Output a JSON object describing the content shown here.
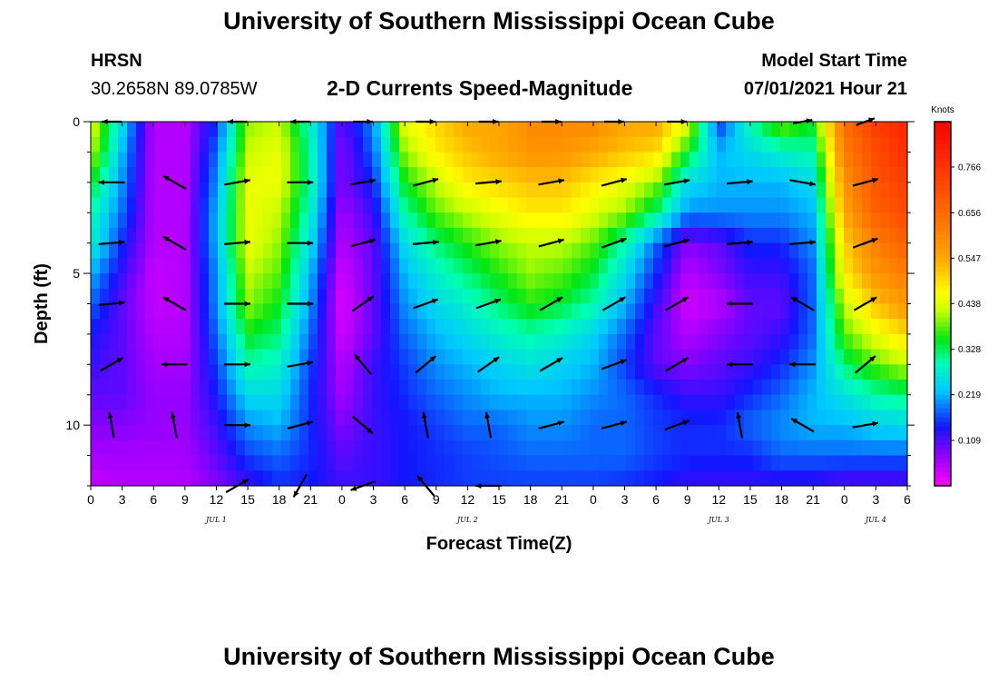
{
  "header": {
    "title": "University of Southern Mississippi Ocean Cube",
    "station": "HRSN",
    "coords": "30.2658N  89.0785W",
    "subtitle": "2-D Currents Speed-Magnitude",
    "model_label": "Model Start Time",
    "model_time": "07/01/2021 Hour 21"
  },
  "footer": {
    "title": "University of Southern Mississippi Ocean Cube"
  },
  "chart_data": {
    "type": "heatmap",
    "title": "2-D Currents Speed-Magnitude",
    "xlabel": "Forecast Time(Z)",
    "ylabel": "Depth (ft)",
    "colorbar_label": "Knots",
    "colorbar_ticks": [
      "0.766",
      "0.656",
      "0.547",
      "0.438",
      "0.328",
      "0.219",
      "0.109"
    ],
    "colorbar_range": [
      0.0,
      0.875
    ],
    "x_tick_labels": [
      "0",
      "3",
      "6",
      "9",
      "12",
      "15",
      "18",
      "21",
      "0",
      "3",
      "6",
      "9",
      "12",
      "15",
      "18",
      "21",
      "0",
      "3",
      "6",
      "9",
      "12",
      "15",
      "18",
      "21",
      "0",
      "3",
      "6"
    ],
    "x_range_hours": [
      0,
      78
    ],
    "day_labels": [
      {
        "label": "JUL 1",
        "hour": 12
      },
      {
        "label": "JUL 2",
        "hour": 36
      },
      {
        "label": "JUL 3",
        "hour": 60
      },
      {
        "label": "JUL 4",
        "hour": 75
      }
    ],
    "y_tick_labels": [
      "0",
      "5",
      "10"
    ],
    "y_range_ft": [
      0,
      12
    ],
    "time_hours": [
      0,
      3,
      6,
      9,
      12,
      15,
      18,
      21,
      24,
      27,
      30,
      33,
      36,
      39,
      42,
      45,
      48,
      51,
      54,
      57,
      60,
      63,
      66,
      69,
      72,
      75,
      78
    ],
    "depth_ft": [
      0,
      1,
      2,
      3,
      4,
      5,
      6,
      7,
      8,
      9,
      10,
      11,
      12
    ],
    "speed_knots": [
      [
        0.45,
        0.25,
        0.05,
        0.05,
        0.15,
        0.4,
        0.42,
        0.28,
        0.1,
        0.2,
        0.45,
        0.5,
        0.55,
        0.55,
        0.6,
        0.6,
        0.6,
        0.55,
        0.55,
        0.45,
        0.15,
        0.3,
        0.4,
        0.35,
        0.65,
        0.75,
        0.8
      ],
      [
        0.42,
        0.22,
        0.05,
        0.05,
        0.18,
        0.42,
        0.45,
        0.3,
        0.08,
        0.18,
        0.4,
        0.48,
        0.52,
        0.55,
        0.58,
        0.58,
        0.55,
        0.52,
        0.5,
        0.35,
        0.22,
        0.25,
        0.28,
        0.3,
        0.62,
        0.72,
        0.78
      ],
      [
        0.35,
        0.2,
        0.05,
        0.05,
        0.2,
        0.45,
        0.45,
        0.3,
        0.08,
        0.15,
        0.35,
        0.42,
        0.48,
        0.5,
        0.52,
        0.52,
        0.48,
        0.45,
        0.4,
        0.25,
        0.22,
        0.22,
        0.22,
        0.25,
        0.58,
        0.7,
        0.75
      ],
      [
        0.3,
        0.18,
        0.05,
        0.05,
        0.22,
        0.45,
        0.42,
        0.28,
        0.06,
        0.12,
        0.3,
        0.38,
        0.42,
        0.45,
        0.48,
        0.48,
        0.44,
        0.4,
        0.32,
        0.2,
        0.2,
        0.2,
        0.2,
        0.22,
        0.55,
        0.68,
        0.72
      ],
      [
        0.28,
        0.15,
        0.05,
        0.05,
        0.22,
        0.45,
        0.4,
        0.25,
        0.05,
        0.1,
        0.25,
        0.32,
        0.36,
        0.4,
        0.42,
        0.42,
        0.38,
        0.3,
        0.18,
        0.08,
        0.1,
        0.15,
        0.15,
        0.2,
        0.5,
        0.62,
        0.68
      ],
      [
        0.22,
        0.12,
        0.04,
        0.05,
        0.2,
        0.42,
        0.38,
        0.22,
        0.03,
        0.1,
        0.22,
        0.28,
        0.32,
        0.36,
        0.4,
        0.38,
        0.34,
        0.25,
        0.15,
        0.05,
        0.08,
        0.12,
        0.12,
        0.18,
        0.48,
        0.58,
        0.62
      ],
      [
        0.18,
        0.1,
        0.04,
        0.05,
        0.2,
        0.4,
        0.35,
        0.2,
        0.02,
        0.1,
        0.2,
        0.25,
        0.28,
        0.32,
        0.36,
        0.34,
        0.3,
        0.22,
        0.12,
        0.03,
        0.05,
        0.1,
        0.1,
        0.18,
        0.42,
        0.52,
        0.58
      ],
      [
        0.14,
        0.1,
        0.05,
        0.05,
        0.18,
        0.35,
        0.32,
        0.18,
        0.03,
        0.1,
        0.18,
        0.22,
        0.25,
        0.28,
        0.3,
        0.28,
        0.24,
        0.18,
        0.1,
        0.05,
        0.08,
        0.1,
        0.12,
        0.18,
        0.38,
        0.45,
        0.5
      ],
      [
        0.12,
        0.1,
        0.06,
        0.06,
        0.16,
        0.3,
        0.28,
        0.16,
        0.05,
        0.12,
        0.16,
        0.2,
        0.22,
        0.24,
        0.26,
        0.24,
        0.22,
        0.16,
        0.1,
        0.08,
        0.1,
        0.12,
        0.15,
        0.2,
        0.32,
        0.38,
        0.42
      ],
      [
        0.1,
        0.1,
        0.07,
        0.07,
        0.14,
        0.25,
        0.25,
        0.15,
        0.06,
        0.12,
        0.15,
        0.18,
        0.2,
        0.22,
        0.22,
        0.22,
        0.2,
        0.18,
        0.15,
        0.12,
        0.12,
        0.15,
        0.18,
        0.22,
        0.26,
        0.3,
        0.32
      ],
      [
        0.08,
        0.08,
        0.07,
        0.07,
        0.12,
        0.2,
        0.22,
        0.15,
        0.08,
        0.12,
        0.14,
        0.16,
        0.18,
        0.18,
        0.2,
        0.2,
        0.18,
        0.18,
        0.16,
        0.15,
        0.15,
        0.18,
        0.2,
        0.22,
        0.22,
        0.24,
        0.25
      ],
      [
        0.06,
        0.06,
        0.06,
        0.06,
        0.1,
        0.16,
        0.18,
        0.15,
        0.1,
        0.12,
        0.14,
        0.15,
        0.16,
        0.17,
        0.18,
        0.18,
        0.18,
        0.18,
        0.16,
        0.15,
        0.15,
        0.15,
        0.18,
        0.18,
        0.18,
        0.18,
        0.18
      ],
      [
        0.04,
        0.05,
        0.05,
        0.05,
        0.08,
        0.12,
        0.15,
        0.14,
        0.12,
        0.12,
        0.14,
        0.15,
        0.16,
        0.16,
        0.16,
        0.16,
        0.16,
        0.15,
        0.14,
        0.12,
        0.12,
        0.12,
        0.12,
        0.12,
        0.1,
        0.1,
        0.1
      ]
    ],
    "vector_depths_ft": [
      0,
      2,
      4,
      6,
      8,
      10,
      12
    ],
    "vector_hours": [
      2,
      8,
      14,
      20,
      26,
      32,
      38,
      44,
      50,
      56,
      62,
      68,
      74
    ],
    "vector_angle_deg": [
      [
        180,
        0,
        180,
        180,
        0,
        0,
        0,
        0,
        0,
        0,
        0,
        10,
        20
      ],
      [
        180,
        150,
        10,
        0,
        10,
        15,
        5,
        10,
        15,
        10,
        5,
        350,
        15
      ],
      [
        5,
        150,
        5,
        0,
        15,
        5,
        10,
        15,
        20,
        15,
        5,
        5,
        20
      ],
      [
        5,
        150,
        0,
        0,
        35,
        20,
        20,
        30,
        30,
        30,
        180,
        150,
        30
      ],
      [
        30,
        180,
        0,
        10,
        130,
        40,
        35,
        30,
        20,
        30,
        180,
        180,
        40
      ],
      [
        100,
        100,
        0,
        15,
        320,
        100,
        100,
        15,
        15,
        20,
        100,
        150,
        10
      ],
      [
        0,
        0,
        30,
        240,
        200,
        130,
        180,
        0,
        0,
        0,
        0,
        0,
        0
      ]
    ],
    "vector_length": [
      [
        0.6,
        0.0,
        0.6,
        0.6,
        0.6,
        0.6,
        0.6,
        0.6,
        0.6,
        0.6,
        0.0,
        0.6,
        0.6
      ],
      [
        0.8,
        0.8,
        0.8,
        0.8,
        0.8,
        0.8,
        0.8,
        0.8,
        0.8,
        0.8,
        0.8,
        0.8,
        0.8
      ],
      [
        0.8,
        0.8,
        0.8,
        0.8,
        0.8,
        0.8,
        0.8,
        0.8,
        0.8,
        0.8,
        0.8,
        0.8,
        0.8
      ],
      [
        0.8,
        0.8,
        0.8,
        0.8,
        0.8,
        0.8,
        0.8,
        0.8,
        0.8,
        0.8,
        0.8,
        0.8,
        0.8
      ],
      [
        0.8,
        0.8,
        0.8,
        0.8,
        0.8,
        0.8,
        0.8,
        0.8,
        0.8,
        0.8,
        0.8,
        0.8,
        0.8
      ],
      [
        0.8,
        0.8,
        0.8,
        0.8,
        0.8,
        0.8,
        0.8,
        0.8,
        0.8,
        0.8,
        0.8,
        0.8,
        0.8
      ],
      [
        0.0,
        0.0,
        0.8,
        0.8,
        0.8,
        0.8,
        0.8,
        0.0,
        0.0,
        0.0,
        0.0,
        0.0,
        0.0
      ]
    ]
  }
}
